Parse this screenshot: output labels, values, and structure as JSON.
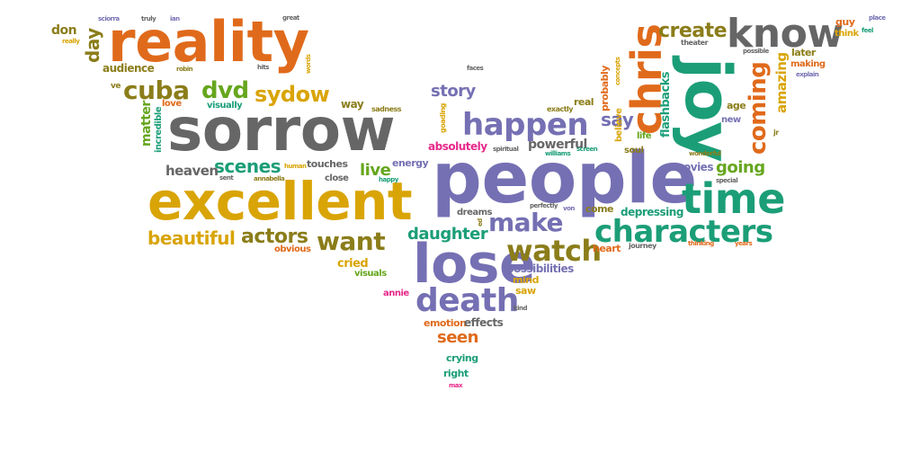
{
  "palette": {
    "orange": "#E06A1B",
    "teal": "#1B9E77",
    "purple": "#7570B3",
    "gray": "#666666",
    "olive": "#8B7D1A",
    "gold": "#D9A406",
    "pink": "#E7298A",
    "green": "#66A61E"
  },
  "words": {
    "reality": "reality",
    "sorrow": "sorrow",
    "excellent": "excellent",
    "people": "people",
    "joy": "joy",
    "lose": "lose",
    "chris": "chris",
    "know": "know",
    "time": "time",
    "happen": "happen",
    "characters": "characters",
    "watch": "watch",
    "death": "death",
    "cuba": "cuba",
    "dvd": "dvd",
    "sydow": "sydow",
    "coming": "coming",
    "create": "create",
    "make": "make",
    "want": "want",
    "actors": "actors",
    "beautiful": "beautiful",
    "scenes": "scenes",
    "story": "story",
    "say": "say",
    "seen": "seen",
    "daughter": "daughter",
    "going": "going",
    "day": "day",
    "don": "don",
    "audience": "audience",
    "matter": "matter",
    "heaven": "heaven",
    "live": "live",
    "amazing": "amazing",
    "flashbacks": "flashbacks",
    "powerful": "powerful",
    "possibilities": "possibilities",
    "emotion": "emotion",
    "effects": "effects",
    "cried": "cried",
    "depressing": "depressing",
    "movies": "movies",
    "come": "come",
    "heart": "heart",
    "crying": "crying",
    "right": "right",
    "mind": "mind",
    "saw": "saw",
    "visuals": "visuals",
    "dreams": "dreams",
    "probably": "probably",
    "absolutely": "absolutely",
    "energy": "energy",
    "touches": "touches",
    "close": "close",
    "obvious": "obvious",
    "later": "later",
    "making": "making",
    "guy": "guy",
    "think": "think",
    "incredible": "incredible",
    "visually": "visually",
    "love": "love",
    "way": "way",
    "sadness": "sadness",
    "real": "real",
    "exactly": "exactly",
    "believe": "believe",
    "life": "life",
    "soul": "soul",
    "age": "age",
    "new": "new",
    "wonderful": "wonderful",
    "special": "special",
    "journey": "journey",
    "thinking": "thinking",
    "years": "years",
    "theater": "theater",
    "ve": "ve",
    "robin": "robin",
    "hits": "hits",
    "faces": "faces",
    "perfectly": "perfectly",
    "spiritual": "spiritual",
    "williams": "williams",
    "screen": "screen",
    "annie": "annie",
    "max": "max",
    "kind": "kind",
    "happy": "happy",
    "sent": "sent",
    "annabella": "annabella",
    "human": "human",
    "sciorra": "sciorra",
    "truly": "truly",
    "ian": "ian",
    "great": "great",
    "really": "really",
    "words": "words",
    "explain": "explain",
    "possible": "possible",
    "feel": "feel",
    "place": "place",
    "goading": "goading",
    "concepts": "concepts",
    "von": "von",
    "jr": "jr",
    "ed": "ed"
  }
}
